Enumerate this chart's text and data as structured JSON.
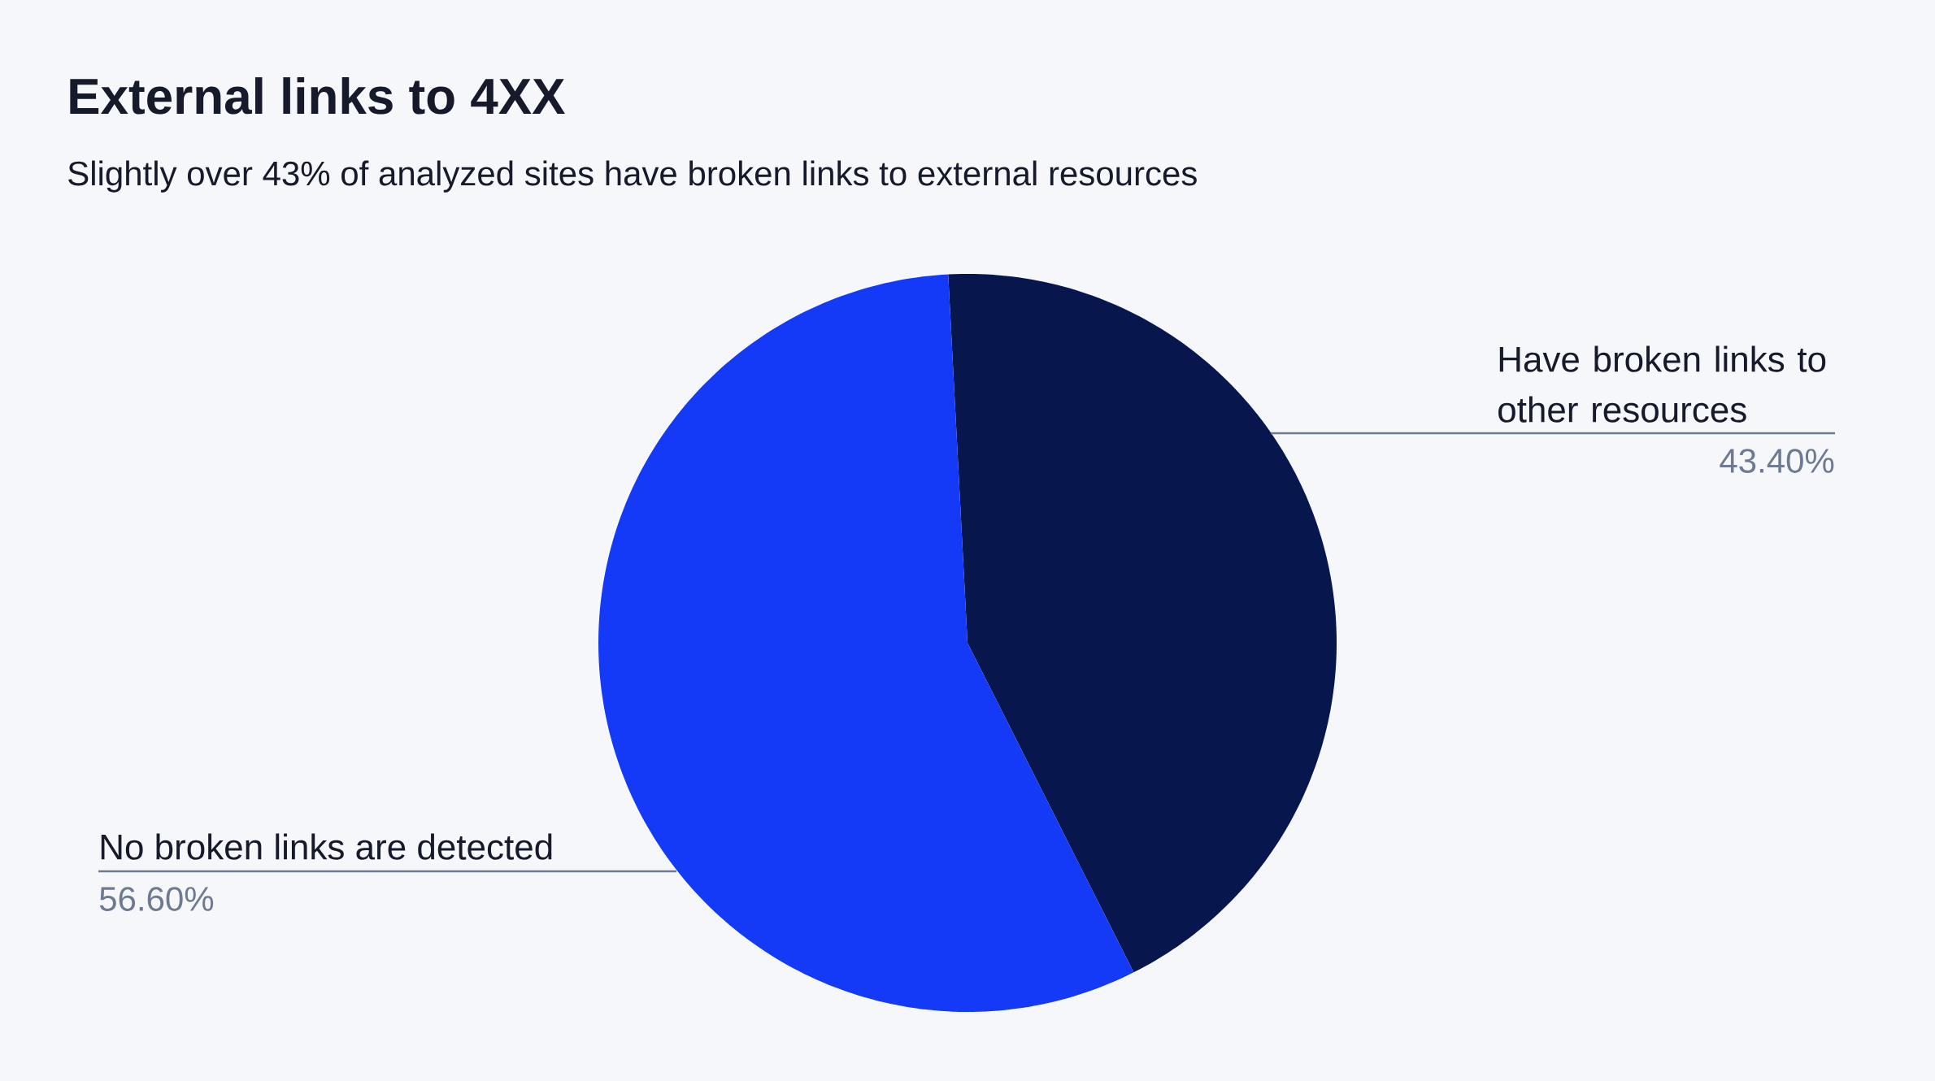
{
  "chart_data": {
    "type": "pie",
    "title": "External links to 4XX",
    "subtitle": "Slightly over 43% of analyzed sites have broken links to external resources",
    "categories": [
      "Have broken links to other resources",
      "No broken links are detected"
    ],
    "values": [
      43.4,
      56.6
    ],
    "value_labels": [
      "43.40%",
      "56.60%"
    ],
    "colors": [
      "#07174d",
      "#1439f7"
    ]
  }
}
